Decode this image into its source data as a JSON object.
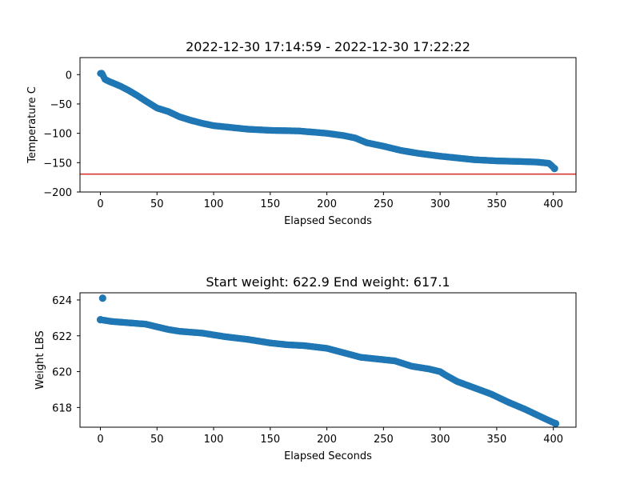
{
  "chart_data": [
    {
      "type": "scatter",
      "title": "2022-12-30 17:14:59 - 2022-12-30 17:22:22",
      "xlabel": "Elapsed Seconds",
      "ylabel": "Temperature C",
      "xlim": [
        -18,
        420
      ],
      "ylim": [
        -200,
        29
      ],
      "xticks": [
        0,
        50,
        100,
        150,
        200,
        250,
        300,
        350,
        400
      ],
      "yticks": [
        0,
        -50,
        -100,
        -150,
        -200
      ],
      "grid": false,
      "marker_color": "#1f77b4",
      "reference_line": {
        "y": -169.5,
        "color": "#d62728"
      },
      "curve": [
        [
          0,
          2
        ],
        [
          2,
          0
        ],
        [
          4,
          -8
        ],
        [
          8,
          -12
        ],
        [
          12,
          -15
        ],
        [
          18,
          -20
        ],
        [
          25,
          -27
        ],
        [
          32,
          -35
        ],
        [
          40,
          -45
        ],
        [
          50,
          -57
        ],
        [
          60,
          -63
        ],
        [
          70,
          -72
        ],
        [
          80,
          -78
        ],
        [
          90,
          -83
        ],
        [
          100,
          -87
        ],
        [
          115,
          -90
        ],
        [
          130,
          -93
        ],
        [
          150,
          -95
        ],
        [
          175,
          -96
        ],
        [
          200,
          -100
        ],
        [
          215,
          -104
        ],
        [
          225,
          -108
        ],
        [
          235,
          -116
        ],
        [
          250,
          -122
        ],
        [
          265,
          -129
        ],
        [
          280,
          -134
        ],
        [
          300,
          -139
        ],
        [
          315,
          -142
        ],
        [
          330,
          -145
        ],
        [
          350,
          -147
        ],
        [
          370,
          -148
        ],
        [
          385,
          -149
        ],
        [
          396,
          -151
        ],
        [
          399,
          -156
        ],
        [
          401,
          -160
        ]
      ],
      "points": [
        [
          1,
          2
        ],
        [
          401,
          -160
        ]
      ]
    },
    {
      "type": "scatter",
      "title": "Start weight: 622.9 End weight: 617.1",
      "xlabel": "Elapsed Seconds",
      "ylabel": "Weight LBS",
      "xlim": [
        -18,
        420
      ],
      "ylim": [
        616.9,
        624.4
      ],
      "xticks": [
        0,
        50,
        100,
        150,
        200,
        250,
        300,
        350,
        400
      ],
      "yticks": [
        618,
        620,
        622,
        624
      ],
      "grid": false,
      "marker_color": "#1f77b4",
      "curve": [
        [
          0,
          622.9
        ],
        [
          10,
          622.8
        ],
        [
          20,
          622.75
        ],
        [
          40,
          622.65
        ],
        [
          50,
          622.5
        ],
        [
          60,
          622.35
        ],
        [
          70,
          622.25
        ],
        [
          90,
          622.15
        ],
        [
          100,
          622.05
        ],
        [
          110,
          621.95
        ],
        [
          130,
          621.8
        ],
        [
          150,
          621.6
        ],
        [
          165,
          621.5
        ],
        [
          180,
          621.45
        ],
        [
          200,
          621.3
        ],
        [
          215,
          621.05
        ],
        [
          230,
          620.8
        ],
        [
          245,
          620.7
        ],
        [
          260,
          620.6
        ],
        [
          275,
          620.3
        ],
        [
          290,
          620.15
        ],
        [
          300,
          620.0
        ],
        [
          305,
          619.8
        ],
        [
          315,
          619.45
        ],
        [
          330,
          619.1
        ],
        [
          345,
          618.75
        ],
        [
          360,
          618.3
        ],
        [
          375,
          617.9
        ],
        [
          390,
          617.45
        ],
        [
          402,
          617.1
        ]
      ],
      "points": [
        [
          2,
          624.1
        ],
        [
          0,
          622.9
        ],
        [
          402,
          617.1
        ]
      ]
    }
  ]
}
